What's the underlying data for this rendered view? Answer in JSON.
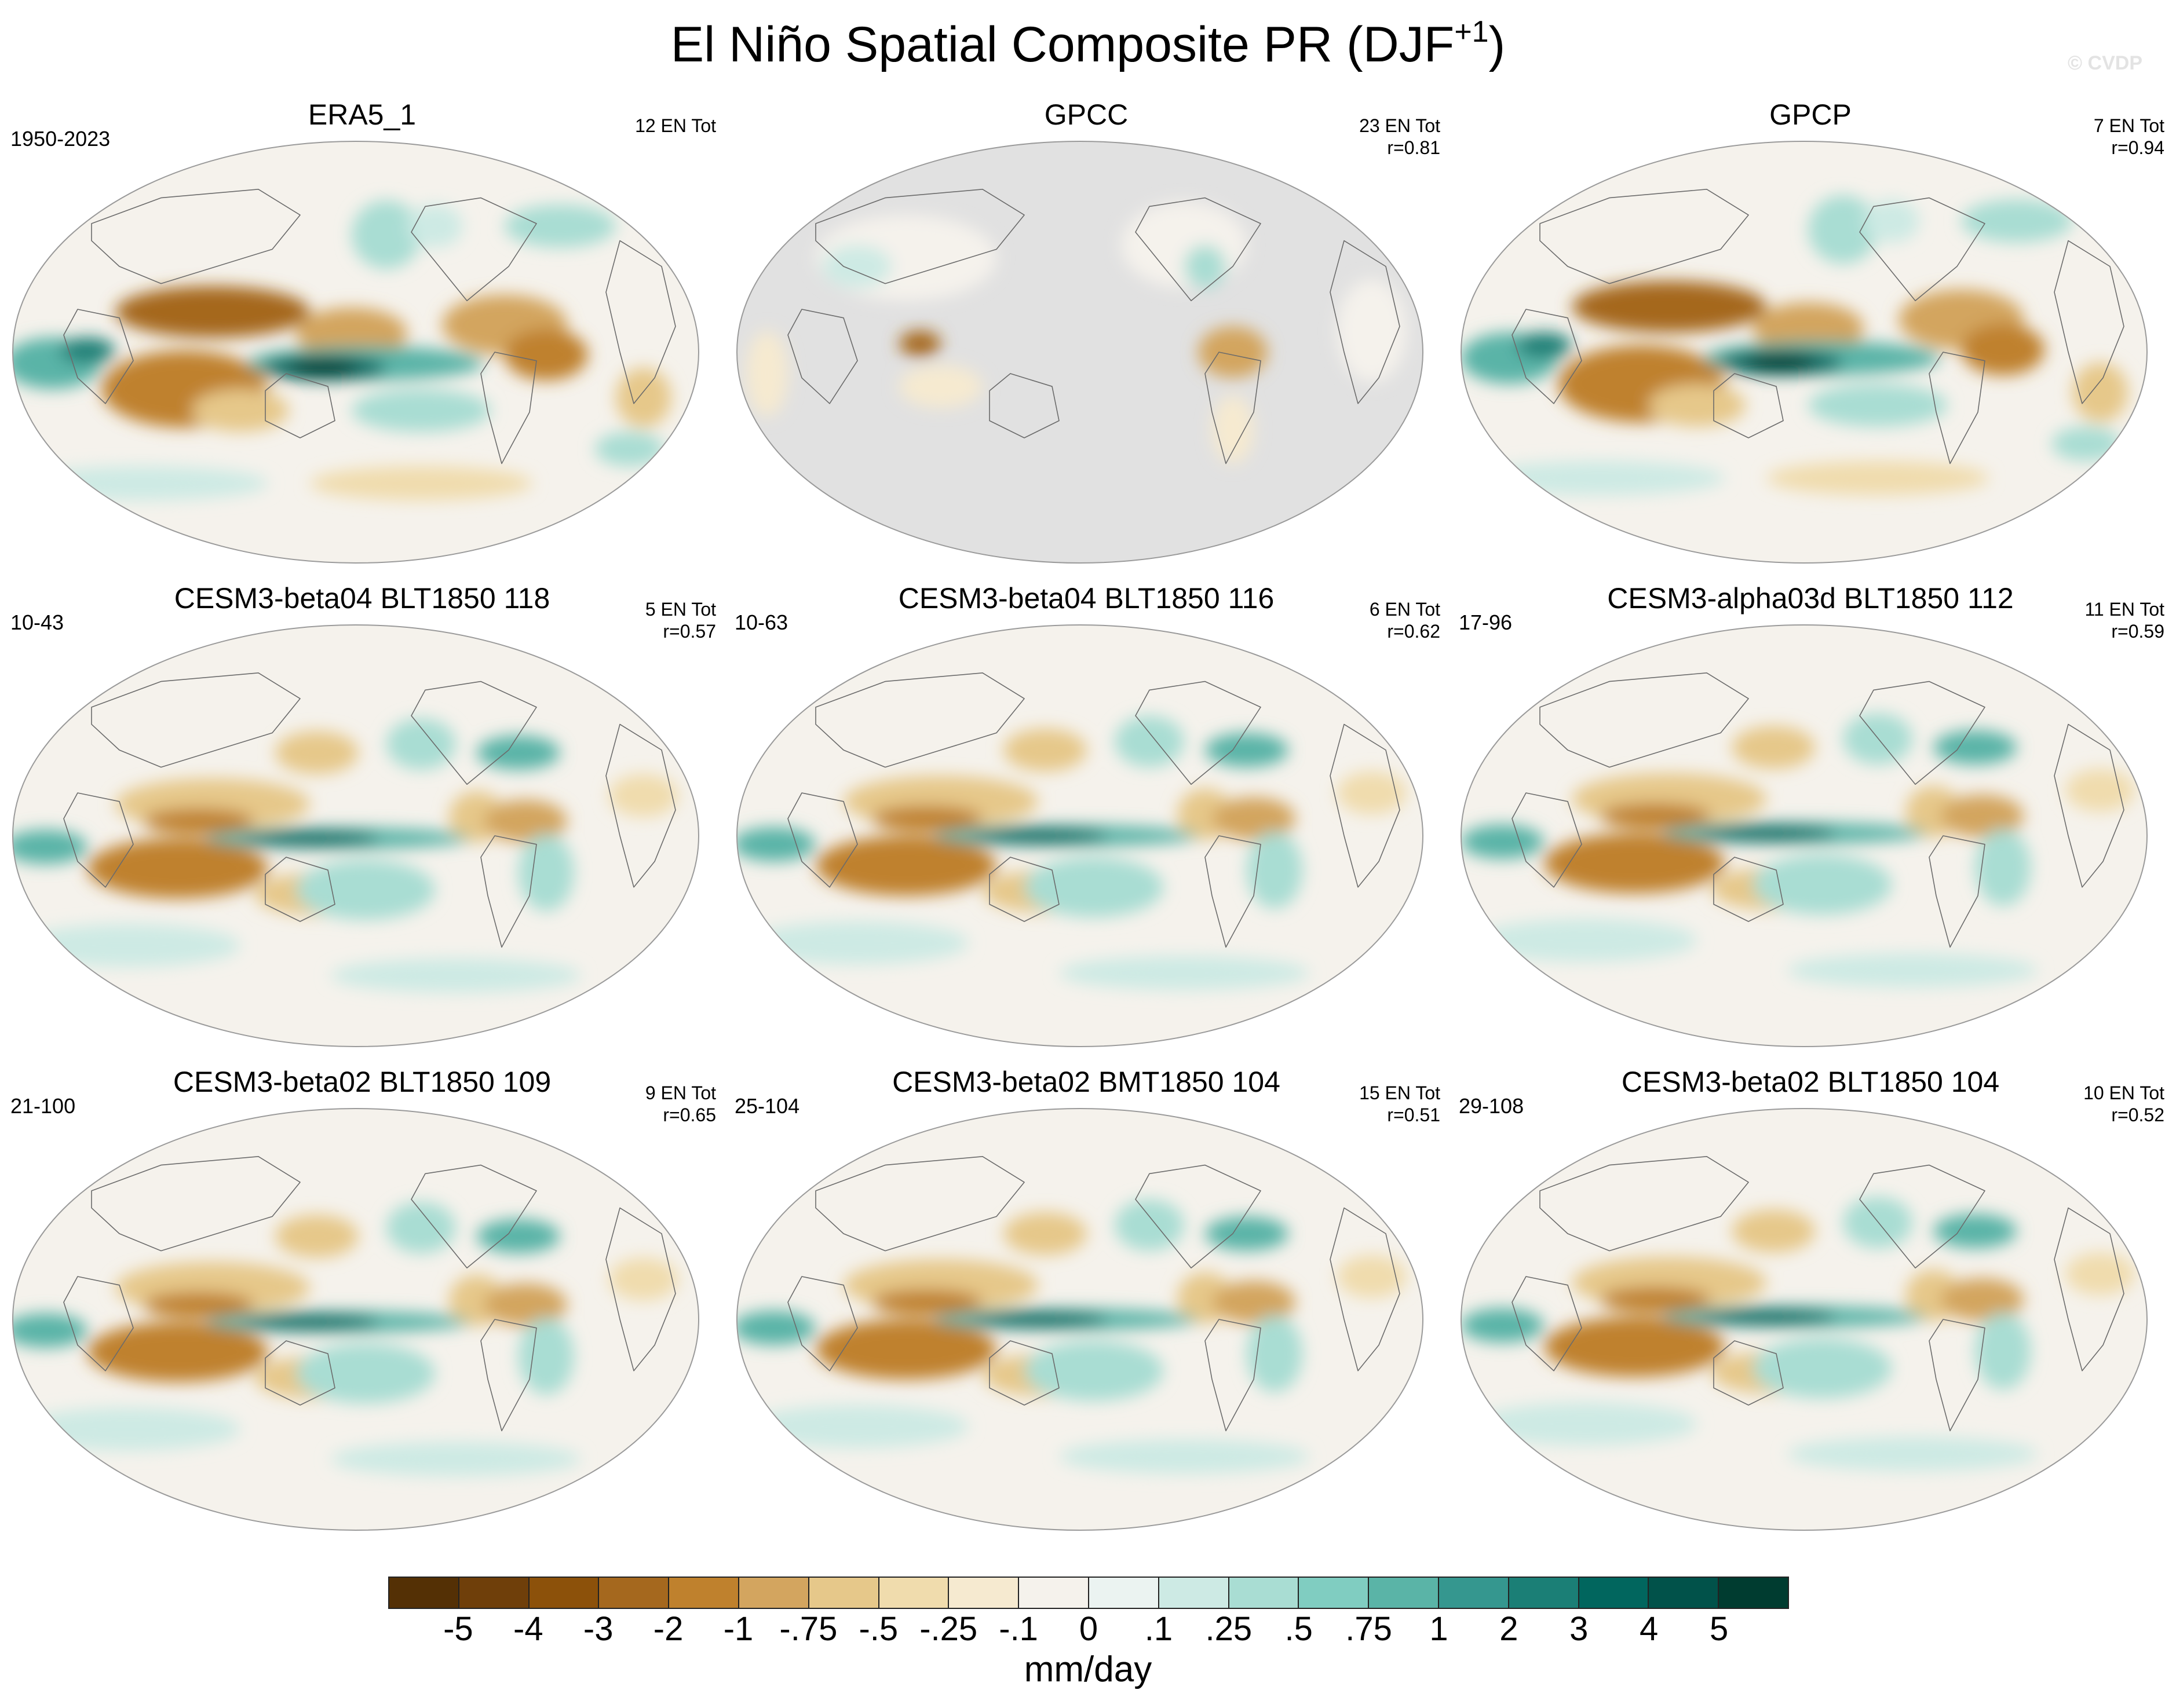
{
  "figure": {
    "title": "El Niño Spatial Composite PR (DJF",
    "title_superscript": "+1",
    "title_close": ")",
    "watermark": "© CVDP",
    "units": "mm/day"
  },
  "colorbar": {
    "labels": [
      "-5",
      "-4",
      "-3",
      "-2",
      "-1",
      "-.75",
      "-.5",
      "-.25",
      "-.1",
      "0",
      ".1",
      ".25",
      ".5",
      ".75",
      "1",
      "2",
      "3",
      "4",
      "5"
    ],
    "colors": [
      "#543005",
      "#6f3f0a",
      "#8c510a",
      "#a5681e",
      "#bf812d",
      "#d3a55f",
      "#e6c88a",
      "#f0dcad",
      "#f6ead0",
      "#f5f2ec",
      "#ebf3f1",
      "#cdeae4",
      "#a9ddd3",
      "#80cdc1",
      "#5ab4a7",
      "#35978f",
      "#1b7f76",
      "#01665e",
      "#01524a",
      "#003c30"
    ]
  },
  "panels": [
    {
      "title": "ERA5_1",
      "period": "1950-2023",
      "ens_line1": "12 EN Tot",
      "ens_line2": "",
      "pattern": "obs"
    },
    {
      "title": "GPCC",
      "period": "",
      "ens_line1": "23 EN Tot",
      "ens_line2": "r=0.81",
      "pattern": "land"
    },
    {
      "title": "GPCP",
      "period": "",
      "ens_line1": "7 EN Tot",
      "ens_line2": "r=0.94",
      "pattern": "obs"
    },
    {
      "title": "CESM3-beta04 BLT1850 118",
      "period": "10-43",
      "ens_line1": "5 EN Tot",
      "ens_line2": "r=0.57",
      "pattern": "model"
    },
    {
      "title": "CESM3-beta04 BLT1850 116",
      "period": "10-63",
      "ens_line1": "6 EN Tot",
      "ens_line2": "r=0.62",
      "pattern": "model"
    },
    {
      "title": "CESM3-alpha03d BLT1850 112",
      "period": "17-96",
      "ens_line1": "11 EN Tot",
      "ens_line2": "r=0.59",
      "pattern": "model"
    },
    {
      "title": "CESM3-beta02 BLT1850 109",
      "period": "21-100",
      "ens_line1": "9 EN Tot",
      "ens_line2": "r=0.65",
      "pattern": "model"
    },
    {
      "title": "CESM3-beta02 BMT1850 104",
      "period": "25-104",
      "ens_line1": "15 EN Tot",
      "ens_line2": "r=0.51",
      "pattern": "model"
    },
    {
      "title": "CESM3-beta02 BLT1850 104",
      "period": "29-108",
      "ens_line1": "10 EN Tot",
      "ens_line2": "r=0.52",
      "pattern": "model"
    }
  ]
}
